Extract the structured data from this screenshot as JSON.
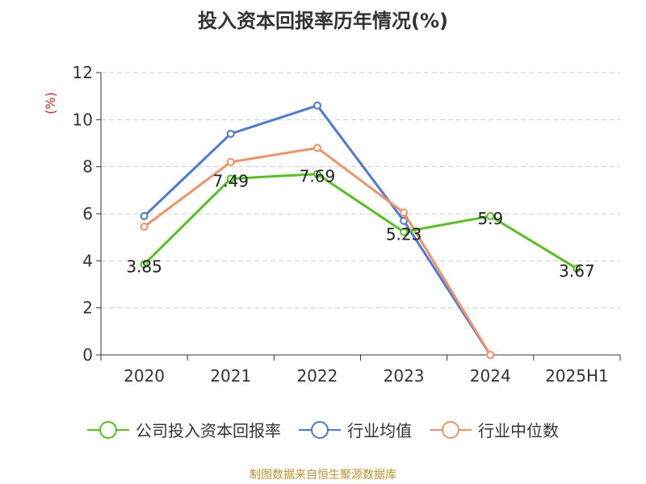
{
  "title": "投入资本回报率历年情况(%)",
  "source_text": "制图数据来自恒生聚源数据库",
  "colors": {
    "company": "#52c41a",
    "industry_avg": "#4a7bd8",
    "industry_median": "#f59263",
    "axis": "#333333",
    "grid": "#cccccc",
    "unit": "#e02020"
  },
  "chart_data": {
    "type": "line",
    "ylabel": "(%)",
    "ylim": [
      0,
      12
    ],
    "yticks": [
      0,
      2,
      4,
      6,
      8,
      10,
      12
    ],
    "grid": true,
    "legend_position": "bottom",
    "categories": [
      "2020",
      "2021",
      "2022",
      "2023",
      "2024",
      "2025H1"
    ],
    "series": [
      {
        "name": "公司投入资本回报率",
        "color_key": "company",
        "values": [
          3.85,
          7.49,
          7.69,
          5.23,
          5.9,
          3.67
        ],
        "labels": [
          "3.85",
          "7.49",
          "7.69",
          "5.23",
          "5.9",
          "3.67"
        ]
      },
      {
        "name": "行业均值",
        "color_key": "industry_avg",
        "values": [
          5.9,
          9.4,
          10.6,
          5.7,
          0,
          null
        ],
        "labels": []
      },
      {
        "name": "行业中位数",
        "color_key": "industry_median",
        "values": [
          5.45,
          8.2,
          8.8,
          6.05,
          0,
          null
        ],
        "labels": []
      }
    ]
  }
}
